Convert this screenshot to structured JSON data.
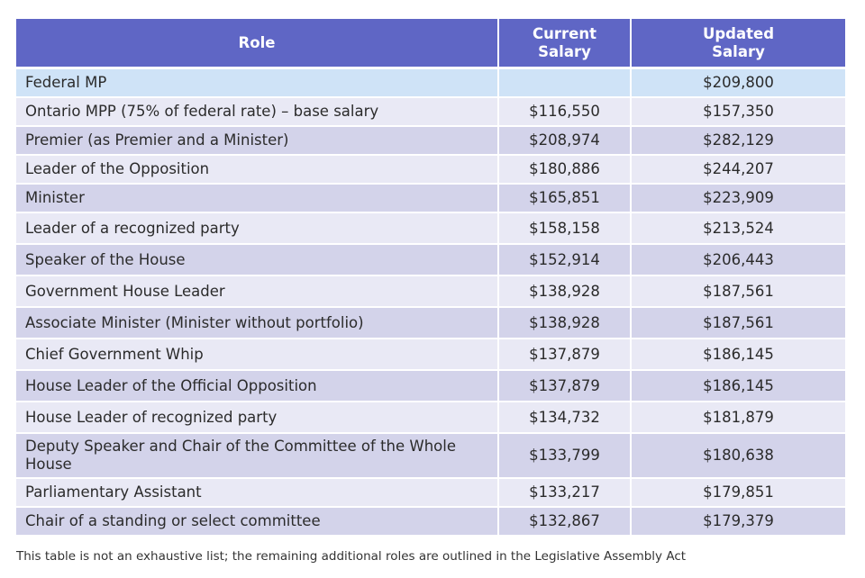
{
  "table": {
    "headers": {
      "role": "Role",
      "current": "Current\nSalary",
      "updated": "Updated\nSalary"
    },
    "rows": [
      {
        "role": "Federal MP",
        "current": "",
        "updated": "$209,800"
      },
      {
        "role": "Ontario MPP (75% of federal rate) – base salary",
        "current": "$116,550",
        "updated": "$157,350"
      },
      {
        "role": "Premier (as Premier and a Minister)",
        "current": "$208,974",
        "updated": "$282,129"
      },
      {
        "role": "Leader of the Opposition",
        "current": "$180,886",
        "updated": "$244,207"
      },
      {
        "role": "Minister",
        "current": "$165,851",
        "updated": "$223,909"
      },
      {
        "role": "Leader of a recognized party",
        "current": "$158,158",
        "updated": "$213,524"
      },
      {
        "role": "Speaker of the House",
        "current": "$152,914",
        "updated": "$206,443"
      },
      {
        "role": "Government House Leader",
        "current": "$138,928",
        "updated": "$187,561"
      },
      {
        "role": "Associate Minister (Minister without portfolio)",
        "current": "$138,928",
        "updated": "$187,561"
      },
      {
        "role": "Chief Government Whip",
        "current": "$137,879",
        "updated": "$186,145"
      },
      {
        "role": "House Leader of the Official Opposition",
        "current": "$137,879",
        "updated": "$186,145"
      },
      {
        "role": "House Leader of recognized party",
        "current": "$134,732",
        "updated": "$181,879"
      },
      {
        "role": "Deputy Speaker and Chair of the Committee of the Whole House",
        "current": "$133,799",
        "updated": "$180,638"
      },
      {
        "role": "Parliamentary Assistant",
        "current": "$133,217",
        "updated": "$179,851"
      },
      {
        "role": "Chair of a standing or select committee",
        "current": "$132,867",
        "updated": "$179,379"
      }
    ]
  },
  "footnote": "This table is not an exhaustive list; the remaining additional roles are outlined in the Legislative Assembly Act",
  "colors": {
    "header_bg": "#5f66c5",
    "row_light": "#e9e9f5",
    "row_dark": "#d3d3ea",
    "row_highlight": "#cfe3f7"
  }
}
